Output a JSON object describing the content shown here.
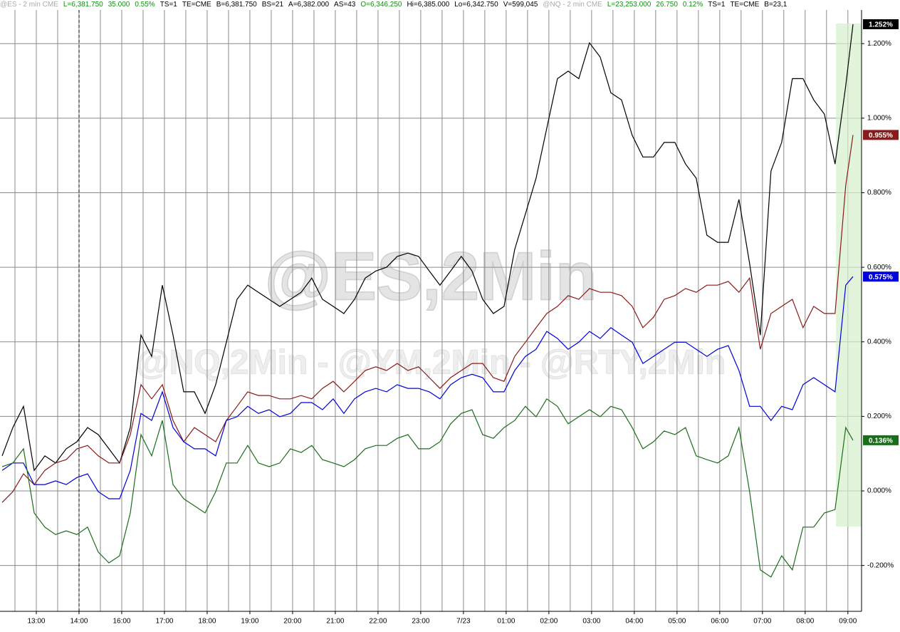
{
  "header": [
    {
      "text": "@ES - 2 min  CME",
      "color": "#aaaaaa"
    },
    {
      "text": "L=6,381.750",
      "color": "#109010"
    },
    {
      "text": "35.000",
      "color": "#109010"
    },
    {
      "text": "0.55%",
      "color": "#109010"
    },
    {
      "text": "TS=1",
      "color": "#000000"
    },
    {
      "text": "TE=CME",
      "color": "#000000"
    },
    {
      "text": "B=6,381.750",
      "color": "#000000"
    },
    {
      "text": "BS=21",
      "color": "#000000"
    },
    {
      "text": "A=6,382.000",
      "color": "#000000"
    },
    {
      "text": "AS=43",
      "color": "#000000"
    },
    {
      "text": "O=6,346.250",
      "color": "#109010"
    },
    {
      "text": "Hi=6,385.000",
      "color": "#000000"
    },
    {
      "text": "Lo=6,342.750",
      "color": "#000000"
    },
    {
      "text": "V=599,045",
      "color": "#000000"
    },
    {
      "text": "@NQ - 2 min  CME",
      "color": "#aaaaaa"
    },
    {
      "text": "L=23,253.000",
      "color": "#109010"
    },
    {
      "text": "26.750",
      "color": "#109010"
    },
    {
      "text": "0.12%",
      "color": "#109010"
    },
    {
      "text": "TS=1",
      "color": "#000000"
    },
    {
      "text": "TE=CME",
      "color": "#000000"
    },
    {
      "text": "B=23,1",
      "color": "#000000"
    }
  ],
  "chart_data": {
    "type": "line",
    "watermark": "@ES,2Min",
    "watermark2": "@NQ,2Min - @YM,2Min - @RTY,2Min",
    "grid": true,
    "xlim": [
      -0.85,
      19.32
    ],
    "ylim": [
      -0.323,
      1.317
    ],
    "xticks": [
      {
        "value": 0,
        "label": "13:00"
      },
      {
        "value": 1,
        "label": "14:00"
      },
      {
        "value": 2,
        "label": "16:00"
      },
      {
        "value": 3,
        "label": "17:00"
      },
      {
        "value": 4,
        "label": "18:00"
      },
      {
        "value": 5,
        "label": "19:00"
      },
      {
        "value": 6,
        "label": "20:00"
      },
      {
        "value": 7,
        "label": "21:00"
      },
      {
        "value": 8,
        "label": "22:00"
      },
      {
        "value": 9,
        "label": "23:00"
      },
      {
        "value": 10,
        "label": "7/23"
      },
      {
        "value": 11,
        "label": "01:00"
      },
      {
        "value": 12,
        "label": "02:00"
      },
      {
        "value": 13,
        "label": "03:00"
      },
      {
        "value": 14,
        "label": "04:00"
      },
      {
        "value": 15,
        "label": "05:00"
      },
      {
        "value": 16,
        "label": "06:00"
      },
      {
        "value": 17,
        "label": "07:00"
      },
      {
        "value": 18,
        "label": "08:00"
      },
      {
        "value": 19,
        "label": "09:00"
      }
    ],
    "yticks": [
      {
        "value": -0.2,
        "label": "-0.200%"
      },
      {
        "value": 0,
        "label": "0.000%"
      },
      {
        "value": 0.2,
        "label": "0.200%"
      },
      {
        "value": 0.4,
        "label": "0.400%"
      },
      {
        "value": 0.6,
        "label": "0.600%"
      },
      {
        "value": 0.8,
        "label": "0.800%"
      },
      {
        "value": 1.0,
        "label": "1.000%"
      },
      {
        "value": 1.2,
        "label": "1.200%"
      }
    ],
    "x": [
      -0.8,
      -0.55,
      -0.3,
      -0.05,
      0.2,
      0.45,
      0.7,
      0.95,
      1.2,
      1.45,
      1.7,
      1.95,
      2.2,
      2.45,
      2.7,
      2.95,
      3.2,
      3.45,
      3.7,
      3.95,
      4.2,
      4.45,
      4.7,
      4.95,
      5.2,
      5.45,
      5.7,
      5.95,
      6.2,
      6.45,
      6.7,
      6.95,
      7.2,
      7.45,
      7.7,
      7.95,
      8.2,
      8.45,
      8.7,
      8.95,
      9.2,
      9.45,
      9.7,
      9.95,
      10.2,
      10.45,
      10.7,
      10.95,
      11.2,
      11.45,
      11.7,
      11.95,
      12.2,
      12.45,
      12.7,
      12.95,
      13.2,
      13.45,
      13.7,
      13.95,
      14.2,
      14.45,
      14.7,
      14.95,
      15.2,
      15.45,
      15.7,
      15.95,
      16.2,
      16.45,
      16.7,
      16.95,
      17.2,
      17.45,
      17.7,
      17.95,
      18.2,
      18.45,
      18.7,
      18.95,
      19.12
    ],
    "series": [
      {
        "color": "#000000",
        "end_label": "1.252%",
        "values": [
          0.094,
          0.17,
          0.227,
          0.055,
          0.094,
          0.075,
          0.113,
          0.132,
          0.17,
          0.151,
          0.113,
          0.075,
          0.17,
          0.418,
          0.361,
          0.552,
          0.418,
          0.266,
          0.266,
          0.208,
          0.285,
          0.399,
          0.514,
          0.552,
          0.533,
          0.514,
          0.495,
          0.514,
          0.533,
          0.571,
          0.514,
          0.495,
          0.476,
          0.514,
          0.571,
          0.59,
          0.6,
          0.629,
          0.638,
          0.629,
          0.59,
          0.552,
          0.59,
          0.629,
          0.59,
          0.514,
          0.476,
          0.495,
          0.648,
          0.743,
          0.839,
          0.973,
          1.106,
          1.126,
          1.106,
          1.202,
          1.164,
          1.068,
          1.049,
          0.954,
          0.896,
          0.896,
          0.935,
          0.935,
          0.877,
          0.839,
          0.686,
          0.667,
          0.667,
          0.782,
          0.61,
          0.418,
          0.858,
          0.935,
          1.106,
          1.106,
          1.049,
          1.011,
          0.877,
          1.087,
          1.252
        ]
      },
      {
        "color": "#8b1a1a",
        "end_label": "0.955%",
        "values": [
          -0.031,
          -0.002,
          0.046,
          0.017,
          0.055,
          0.075,
          0.084,
          0.113,
          0.122,
          0.094,
          0.075,
          0.075,
          0.151,
          0.285,
          0.247,
          0.285,
          0.189,
          0.132,
          0.17,
          0.151,
          0.132,
          0.189,
          0.227,
          0.266,
          0.256,
          0.256,
          0.247,
          0.247,
          0.256,
          0.247,
          0.275,
          0.294,
          0.266,
          0.294,
          0.323,
          0.333,
          0.323,
          0.342,
          0.323,
          0.333,
          0.304,
          0.275,
          0.304,
          0.323,
          0.342,
          0.342,
          0.304,
          0.294,
          0.361,
          0.399,
          0.438,
          0.476,
          0.495,
          0.524,
          0.514,
          0.543,
          0.533,
          0.533,
          0.524,
          0.495,
          0.438,
          0.466,
          0.514,
          0.524,
          0.543,
          0.533,
          0.552,
          0.552,
          0.562,
          0.533,
          0.571,
          0.38,
          0.476,
          0.495,
          0.514,
          0.438,
          0.495,
          0.476,
          0.476,
          0.82,
          0.955
        ]
      },
      {
        "color": "#0000dd",
        "end_label": "0.575%",
        "values": [
          0.055,
          0.075,
          0.075,
          0.017,
          0.017,
          0.027,
          0.017,
          0.036,
          0.046,
          -0.002,
          -0.021,
          -0.021,
          0.055,
          0.208,
          0.189,
          0.266,
          0.17,
          0.132,
          0.113,
          0.113,
          0.094,
          0.189,
          0.199,
          0.227,
          0.208,
          0.218,
          0.199,
          0.208,
          0.237,
          0.237,
          0.218,
          0.247,
          0.208,
          0.247,
          0.266,
          0.275,
          0.266,
          0.285,
          0.275,
          0.275,
          0.266,
          0.247,
          0.285,
          0.304,
          0.313,
          0.304,
          0.266,
          0.266,
          0.323,
          0.361,
          0.38,
          0.428,
          0.409,
          0.38,
          0.399,
          0.428,
          0.409,
          0.438,
          0.418,
          0.399,
          0.342,
          0.361,
          0.38,
          0.399,
          0.399,
          0.38,
          0.361,
          0.38,
          0.39,
          0.323,
          0.227,
          0.227,
          0.189,
          0.227,
          0.218,
          0.285,
          0.304,
          0.285,
          0.266,
          0.552,
          0.575
        ]
      },
      {
        "color": "#1a6e1a",
        "end_label": "0.136%",
        "values": [
          0.065,
          0.075,
          0.113,
          -0.059,
          -0.097,
          -0.117,
          -0.107,
          -0.117,
          -0.097,
          -0.164,
          -0.193,
          -0.174,
          -0.059,
          0.151,
          0.094,
          0.189,
          0.017,
          -0.021,
          -0.04,
          -0.059,
          -0.002,
          0.075,
          0.075,
          0.122,
          0.075,
          0.065,
          0.075,
          0.113,
          0.103,
          0.122,
          0.084,
          0.075,
          0.065,
          0.084,
          0.113,
          0.122,
          0.122,
          0.141,
          0.151,
          0.113,
          0.113,
          0.132,
          0.18,
          0.208,
          0.218,
          0.151,
          0.141,
          0.17,
          0.189,
          0.227,
          0.199,
          0.247,
          0.227,
          0.18,
          0.199,
          0.218,
          0.199,
          0.227,
          0.218,
          0.17,
          0.113,
          0.132,
          0.161,
          0.151,
          0.17,
          0.094,
          0.084,
          0.075,
          0.094,
          0.17,
          -0.002,
          -0.212,
          -0.231,
          -0.174,
          -0.212,
          -0.097,
          -0.097,
          -0.059,
          -0.05,
          0.17,
          0.136
        ]
      }
    ]
  }
}
